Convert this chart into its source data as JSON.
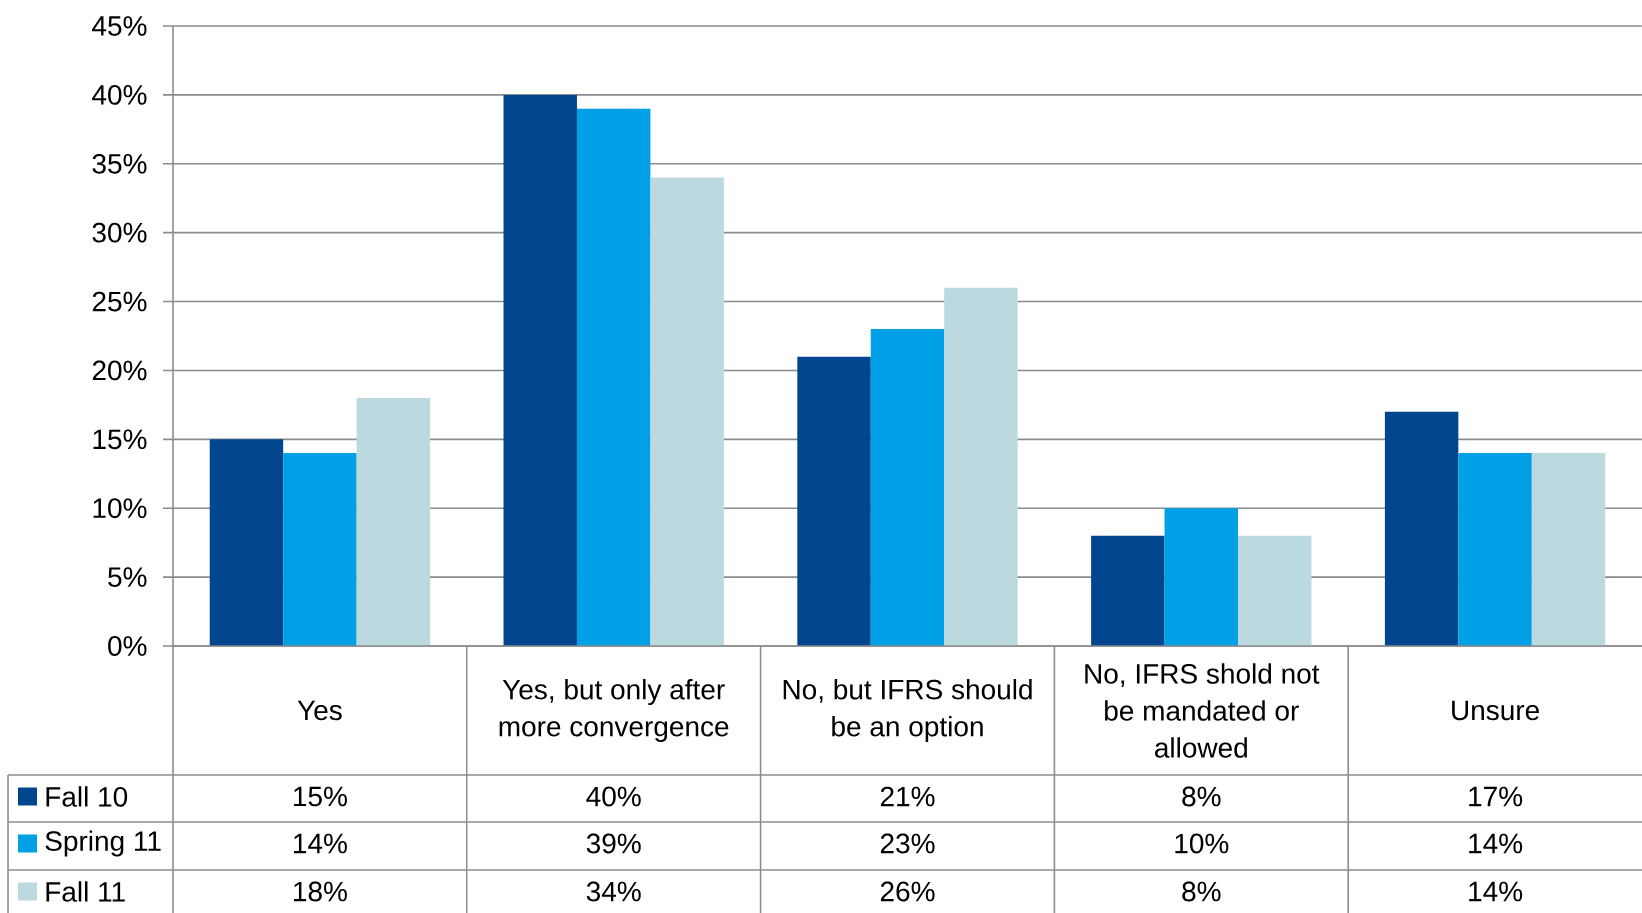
{
  "chart_data": {
    "type": "bar",
    "categories": [
      "Yes",
      "Yes, but only after more convergence",
      "No, but IFRS should be an option",
      "No, IFRS shold not be mandated or allowed",
      "Unsure"
    ],
    "series": [
      {
        "name": "Fall 10",
        "color": "#00468e",
        "values": [
          15,
          40,
          21,
          8,
          17
        ],
        "value_labels": [
          "15%",
          "40%",
          "21%",
          "8%",
          "17%"
        ]
      },
      {
        "name": "Spring 11",
        "color": "#00a0e6",
        "values": [
          14,
          39,
          23,
          10,
          14
        ],
        "value_labels": [
          "14%",
          "39%",
          "23%",
          "10%",
          "14%"
        ]
      },
      {
        "name": "Fall 11",
        "color": "#bcd9e0",
        "values": [
          18,
          34,
          26,
          8,
          14
        ],
        "value_labels": [
          "18%",
          "34%",
          "26%",
          "8%",
          "14%"
        ]
      }
    ],
    "ylim": [
      0,
      45
    ],
    "yticks": [
      {
        "value": 0,
        "label": "0%"
      },
      {
        "value": 5,
        "label": "5%"
      },
      {
        "value": 10,
        "label": "10%"
      },
      {
        "value": 15,
        "label": "15%"
      },
      {
        "value": 20,
        "label": "20%"
      },
      {
        "value": 25,
        "label": "25%"
      },
      {
        "value": 30,
        "label": "30%"
      },
      {
        "value": 35,
        "label": "35%"
      },
      {
        "value": 40,
        "label": "40%"
      },
      {
        "value": 45,
        "label": "45%"
      }
    ],
    "grid": "y",
    "legend": "bottom left"
  }
}
